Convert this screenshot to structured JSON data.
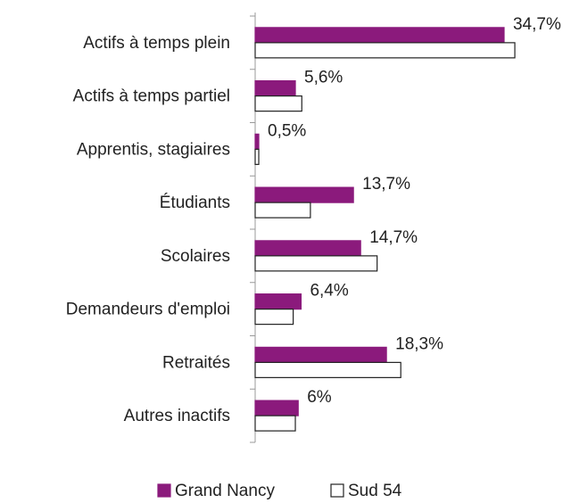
{
  "chart_data": {
    "type": "bar",
    "orientation": "horizontal",
    "categories": [
      "Actifs à temps plein",
      "Actifs à temps partiel",
      "Apprentis, stagiaires",
      "Étudiants",
      "Scolaires",
      "Demandeurs d'emploi",
      "Retraités",
      "Autres inactifs"
    ],
    "series": [
      {
        "name": "Grand Nancy",
        "color": "#8b1a7c",
        "values": [
          34.7,
          5.6,
          0.5,
          13.7,
          14.7,
          6.4,
          18.3,
          6
        ],
        "value_labels": [
          "34,7%",
          "5,6%",
          "0,5%",
          "13,7%",
          "14,7%",
          "6,4%",
          "18,3%",
          "6%"
        ]
      },
      {
        "name": "Sud 54",
        "color": "#ffffff",
        "values": [
          36.2,
          6.5,
          0.5,
          7.7,
          17.0,
          5.3,
          20.3,
          5.6
        ]
      }
    ],
    "xlim": [
      0,
      40
    ],
    "legend": "bottom"
  }
}
